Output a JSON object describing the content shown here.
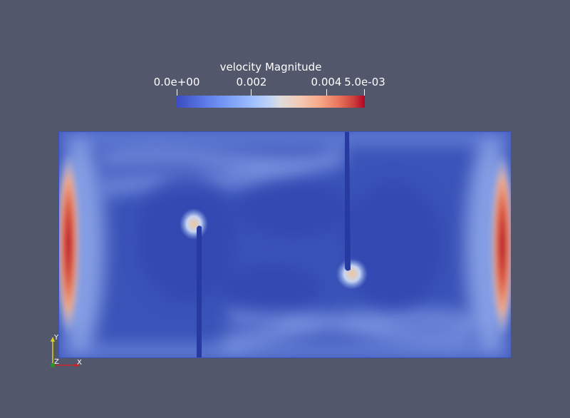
{
  "legend": {
    "title": "velocity Magnitude",
    "ticks": [
      "0.0e+00",
      "0.002",
      "0.004",
      "5.0e-03"
    ],
    "colormap": [
      "#3b4cc0",
      "#dddcdc",
      "#b40426"
    ]
  },
  "plot": {
    "background_color": "#3a53b8",
    "high_color": "#b40426"
  },
  "axes": {
    "x_label": "X",
    "y_label": "Y",
    "z_label": "Z"
  },
  "background_color": "#52576b"
}
